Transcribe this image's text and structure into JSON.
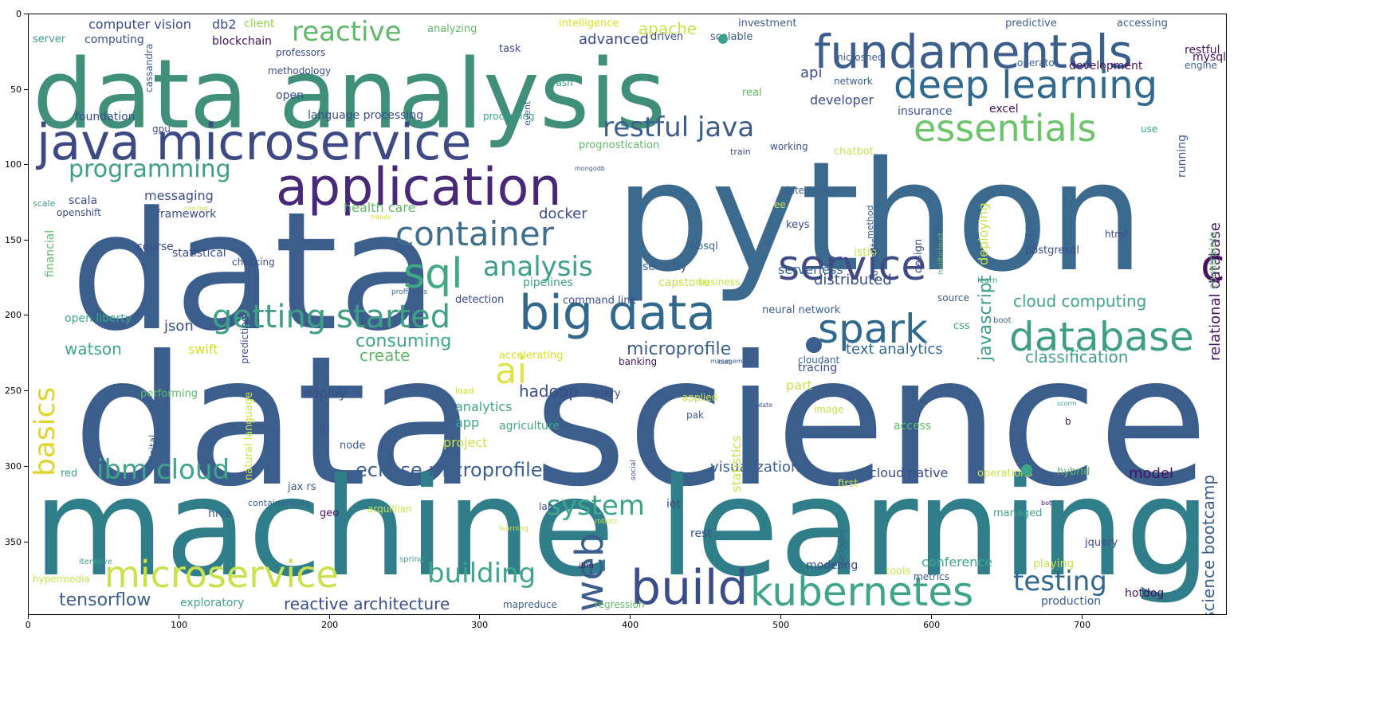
{
  "figure": {
    "x_ticks": [
      "0",
      "100",
      "200",
      "300",
      "400",
      "500",
      "600",
      "700"
    ],
    "y_ticks": [
      "0",
      "50",
      "100",
      "150",
      "200",
      "250",
      "300",
      "350"
    ]
  },
  "palette": {
    "purple": "#440154",
    "indigo": "#3b528b",
    "blue": "#31688e",
    "teal": "#21918c",
    "green": "#35b779",
    "lime": "#90d743",
    "yellow": "#d5e21a"
  },
  "words": [
    {
      "text": "data analysis",
      "color": "#3f8f7a"
    },
    {
      "text": "python",
      "color": "#3b6a8e"
    },
    {
      "text": "data",
      "color": "#3b5e8c"
    },
    {
      "text": "data science",
      "color": "#3b5e8c"
    },
    {
      "text": "machine learning",
      "color": "#2f7e8a"
    },
    {
      "text": "java microservice",
      "color": "#3e4a86"
    },
    {
      "text": "application",
      "color": "#482878"
    },
    {
      "text": "fundamentals",
      "color": "#3b5e8c"
    },
    {
      "text": "deep learning",
      "color": "#31688e"
    },
    {
      "text": "essentials",
      "color": "#6cc36a"
    },
    {
      "text": "service",
      "color": "#404b86"
    },
    {
      "text": "cloud",
      "color": "#45125f"
    },
    {
      "text": "big data",
      "color": "#31688e"
    },
    {
      "text": "spark",
      "color": "#31688e"
    },
    {
      "text": "database",
      "color": "#3f9f86"
    },
    {
      "text": "container",
      "color": "#3f6f8e"
    },
    {
      "text": "sql",
      "color": "#3fa985"
    },
    {
      "text": "analysis",
      "color": "#3b9f8c"
    },
    {
      "text": "getting started",
      "color": "#3f9f86"
    },
    {
      "text": "restful java",
      "color": "#3b5e8c"
    },
    {
      "text": "programming",
      "color": "#3f9f86"
    },
    {
      "text": "reactive",
      "color": "#61b96a"
    },
    {
      "text": "microservice",
      "color": "#cbe04a"
    },
    {
      "text": "build",
      "color": "#3b4c8a"
    },
    {
      "text": "kubernetes",
      "color": "#3fa58a"
    },
    {
      "text": "building",
      "color": "#3fa58a"
    },
    {
      "text": "testing",
      "color": "#31688e"
    },
    {
      "text": "system",
      "color": "#3fa58a"
    },
    {
      "text": "ibm cloud",
      "color": "#3fa58a"
    },
    {
      "text": "eclipse microprofile",
      "color": "#3b5e8c"
    },
    {
      "text": "ai",
      "color": "#e0e34a"
    },
    {
      "text": "basics",
      "color": "#e0d52a"
    },
    {
      "text": "web",
      "color": "#3b5e8c"
    },
    {
      "text": "hadoop",
      "color": "#3b4c8a"
    },
    {
      "text": "microprofile",
      "color": "#3b5e8c"
    },
    {
      "text": "tensorflow",
      "color": "#3b5e8c"
    },
    {
      "text": "reactive architecture",
      "color": "#3b4c8a"
    },
    {
      "text": "consuming",
      "color": "#3fa58a"
    },
    {
      "text": "create",
      "color": "#61b96a"
    },
    {
      "text": "watson",
      "color": "#3fa58a"
    },
    {
      "text": "json",
      "color": "#3b4c8a"
    },
    {
      "text": "swift",
      "color": "#d5e21a"
    },
    {
      "text": "classification",
      "color": "#3f9f86"
    },
    {
      "text": "text analytics",
      "color": "#31688e"
    },
    {
      "text": "cloud computing",
      "color": "#3fa58a"
    },
    {
      "text": "relational database",
      "color": "#45125f"
    },
    {
      "text": "javascript",
      "color": "#3b9f8c"
    },
    {
      "text": "distributed",
      "color": "#3b4c8a"
    },
    {
      "text": "serverless",
      "color": "#31688e"
    },
    {
      "text": "docker",
      "color": "#3b4c8a"
    },
    {
      "text": "health care",
      "color": "#61b96a"
    },
    {
      "text": "api",
      "color": "#3b4c8a"
    },
    {
      "text": "developer",
      "color": "#3b4c8a"
    },
    {
      "text": "advanced",
      "color": "#3b4c8a"
    },
    {
      "text": "apache",
      "color": "#cbe04a"
    },
    {
      "text": "visualization",
      "color": "#3b5e8c"
    },
    {
      "text": "cloud native",
      "color": "#3b4c8a"
    },
    {
      "text": "model",
      "color": "#45125f"
    },
    {
      "text": "science bootcamp",
      "color": "#3b5e8c"
    },
    {
      "text": "conference",
      "color": "#3fa58a"
    },
    {
      "text": "modeling",
      "color": "#3b4c8a"
    },
    {
      "text": "exploratory",
      "color": "#3fa58a"
    },
    {
      "text": "production",
      "color": "#3b5e8c"
    },
    {
      "text": "hotdog",
      "color": "#45125f"
    },
    {
      "text": "analytics",
      "color": "#3fa58a"
    },
    {
      "text": "app",
      "color": "#3fa58a"
    },
    {
      "text": "project",
      "color": "#cbe04a"
    },
    {
      "text": "agriculture",
      "color": "#3fa58a"
    },
    {
      "text": "deploy",
      "color": "#3b4c8a"
    },
    {
      "text": "part",
      "color": "#cbe04a"
    },
    {
      "text": "statistics",
      "color": "#cbe04a"
    },
    {
      "text": "tracing",
      "color": "#3b4c8a"
    },
    {
      "text": "open liberty",
      "color": "#3fa58a"
    },
    {
      "text": "computer vision",
      "color": "#3b4c8a"
    },
    {
      "text": "computing",
      "color": "#3b4c8a"
    },
    {
      "text": "db2",
      "color": "#3b4c8a"
    },
    {
      "text": "client",
      "color": "#90d743"
    },
    {
      "text": "blockchain",
      "color": "#45125f"
    },
    {
      "text": "foundation",
      "color": "#3b4c8a"
    },
    {
      "text": "language processing",
      "color": "#3b4c8a"
    },
    {
      "text": "messaging",
      "color": "#3b4c8a"
    },
    {
      "text": "framework",
      "color": "#3b4c8a"
    },
    {
      "text": "scala",
      "color": "#3b4c8a"
    },
    {
      "text": "openshift",
      "color": "#3b4c8a"
    },
    {
      "text": "course",
      "color": "#3b4c8a"
    },
    {
      "text": "statistical",
      "color": "#3b4c8a"
    },
    {
      "text": "checking",
      "color": "#3b4c8a"
    },
    {
      "text": "pipelines",
      "color": "#3fa58a"
    },
    {
      "text": "capstone",
      "color": "#cbe04a"
    },
    {
      "text": "business",
      "color": "#cbe04a"
    },
    {
      "text": "security",
      "color": "#3b5e8c"
    },
    {
      "text": "nosql",
      "color": "#3b5e8c"
    },
    {
      "text": "postgresql",
      "color": "#3b4c8a"
    },
    {
      "text": "deploying",
      "color": "#cbe04a"
    },
    {
      "text": "prognostication",
      "color": "#61b96a"
    },
    {
      "text": "chatbot",
      "color": "#cbe04a"
    },
    {
      "text": "insurance",
      "color": "#3b4c8a"
    },
    {
      "text": "excel",
      "color": "#45125f"
    },
    {
      "text": "mysql",
      "color": "#45125f"
    },
    {
      "text": "restful",
      "color": "#45125f"
    },
    {
      "text": "development",
      "color": "#45125f"
    },
    {
      "text": "engine",
      "color": "#3b5e8c"
    },
    {
      "text": "accessing",
      "color": "#3b5e8c"
    },
    {
      "text": "predictive",
      "color": "#3b5e8c"
    },
    {
      "text": "investment",
      "color": "#3b5e8c"
    },
    {
      "text": "intelligence",
      "color": "#d5e21a"
    },
    {
      "text": "analyzing",
      "color": "#61b96a"
    },
    {
      "text": "task",
      "color": "#3b4c8a"
    },
    {
      "text": "driven",
      "color": "#3b4c8a"
    },
    {
      "text": "scalable",
      "color": "#3b5e8c"
    },
    {
      "text": "professors",
      "color": "#3b4c8a"
    },
    {
      "text": "methodology",
      "color": "#3b4c8a"
    },
    {
      "text": "open",
      "color": "#3b4c8a"
    },
    {
      "text": "server",
      "color": "#3b9f8c"
    },
    {
      "text": "microshed",
      "color": "#3b5e8c"
    },
    {
      "text": "network",
      "color": "#3b5e8c"
    },
    {
      "text": "operator",
      "color": "#3b5e8c"
    },
    {
      "text": "real",
      "color": "#61b96a"
    },
    {
      "text": "crash",
      "color": "#3b9f8c"
    },
    {
      "text": "processing",
      "color": "#3b9f8c"
    },
    {
      "text": "gpu",
      "color": "#3b4c8a"
    },
    {
      "text": "use",
      "color": "#3b9f8c"
    },
    {
      "text": "train",
      "color": "#3b4c8a"
    },
    {
      "text": "working",
      "color": "#3b4c8a"
    },
    {
      "text": "mongodb",
      "color": "#3b5e8c"
    },
    {
      "text": "coming",
      "color": "#cbe04a"
    },
    {
      "text": "integration",
      "color": "#3b5e8c"
    },
    {
      "text": "hands",
      "color": "#d5e21a"
    },
    {
      "text": "keys",
      "color": "#3b4c8a"
    },
    {
      "text": "html",
      "color": "#3b4c8a"
    },
    {
      "text": "design",
      "color": "#3b4c8a"
    },
    {
      "text": "istio",
      "color": "#cbe04a"
    },
    {
      "text": "learn",
      "color": "#3b9f8c"
    },
    {
      "text": "source",
      "color": "#3b5e8c"
    },
    {
      "text": "boot",
      "color": "#3b5e8c"
    },
    {
      "text": "css",
      "color": "#3b9f8c"
    },
    {
      "text": "neural network",
      "color": "#3b5e8c"
    },
    {
      "text": "command line",
      "color": "#3b4c8a"
    },
    {
      "text": "detection",
      "color": "#3b4c8a"
    },
    {
      "text": "proffesors",
      "color": "#3b5e8c"
    },
    {
      "text": "banking",
      "color": "#45125f"
    },
    {
      "text": "cloudant",
      "color": "#3b5e8c"
    },
    {
      "text": "accelerating",
      "color": "#d5e21a"
    },
    {
      "text": "management",
      "color": "#3b5e8c"
    },
    {
      "text": "predicting",
      "color": "#3b4c8a"
    },
    {
      "text": "performing",
      "color": "#61b96a"
    },
    {
      "text": "query",
      "color": "#3b4c8a"
    },
    {
      "text": "load",
      "color": "#d5e21a"
    },
    {
      "text": "applied",
      "color": "#cbe04a"
    },
    {
      "text": "pak",
      "color": "#3b5e8c"
    },
    {
      "text": "update",
      "color": "#3b5e8c"
    },
    {
      "text": "image",
      "color": "#cbe04a"
    },
    {
      "text": "access",
      "color": "#61b96a"
    },
    {
      "text": "ii",
      "color": "#3b4c8a"
    },
    {
      "text": "node",
      "color": "#3b5e8c"
    },
    {
      "text": "red",
      "color": "#3b9f8c"
    },
    {
      "text": "jax rs",
      "color": "#3b5e8c"
    },
    {
      "text": "containerizing",
      "color": "#3b5e8c"
    },
    {
      "text": "lab",
      "color": "#3b4c8a"
    },
    {
      "text": "iot",
      "color": "#3b4c8a"
    },
    {
      "text": "first",
      "color": "#cbe04a"
    },
    {
      "text": "operations",
      "color": "#cbe04a"
    },
    {
      "text": "hybrid",
      "color": "#61b96a"
    },
    {
      "text": "hive",
      "color": "#3b5e8c"
    },
    {
      "text": "geo",
      "color": "#45125f"
    },
    {
      "text": "arquillian",
      "color": "#cbe04a"
    },
    {
      "text": "robots",
      "color": "#cbe04a"
    },
    {
      "text": "rest",
      "color": "#3b4c8a"
    },
    {
      "text": "managed",
      "color": "#3b9f8c"
    },
    {
      "text": "bot",
      "color": "#45125f"
    },
    {
      "text": "jquery",
      "color": "#3b4c8a"
    },
    {
      "text": "iterative",
      "color": "#3b9f8c"
    },
    {
      "text": "spring",
      "color": "#3b9f8c"
    },
    {
      "text": "ibm",
      "color": "#45125f"
    },
    {
      "text": "playing",
      "color": "#cbe04a"
    },
    {
      "text": "hypermedia",
      "color": "#cbe04a"
    },
    {
      "text": "tools",
      "color": "#cbe04a"
    },
    {
      "text": "metrics",
      "color": "#3b5e8c"
    },
    {
      "text": "regression",
      "color": "#61b96a"
    },
    {
      "text": "mapreduce",
      "color": "#3b5e8c"
    },
    {
      "text": "learning",
      "color": "#cbe04a"
    },
    {
      "text": "test",
      "color": "#3b5e8c"
    },
    {
      "text": "scorm",
      "color": "#3b9f8c"
    },
    {
      "text": "b",
      "color": "#45125f"
    },
    {
      "text": "cassandra",
      "color": "#3b5e8c"
    },
    {
      "text": "financial",
      "color": "#61b96a"
    },
    {
      "text": "digital",
      "color": "#3b5e8c"
    },
    {
      "text": "natural language",
      "color": "#cbe04a"
    },
    {
      "text": "social",
      "color": "#3b4c8a"
    },
    {
      "text": "event",
      "color": "#3b5e8c"
    },
    {
      "text": "method",
      "color": "#3b5e8c"
    },
    {
      "text": "concepts",
      "color": "#3b5e8c"
    },
    {
      "text": "health",
      "color": "#3b5e8c"
    },
    {
      "text": "multicloud",
      "color": "#61b96a"
    },
    {
      "text": "ee",
      "color": "#cbe04a"
    },
    {
      "text": "table",
      "color": "#3b5e8c"
    },
    {
      "text": "running",
      "color": "#3b5e8c"
    },
    {
      "text": "constraints",
      "color": "#61b96a"
    },
    {
      "text": "packaging",
      "color": "#3b5e8c"
    },
    {
      "text": "scale",
      "color": "#3b9f8c"
    }
  ]
}
